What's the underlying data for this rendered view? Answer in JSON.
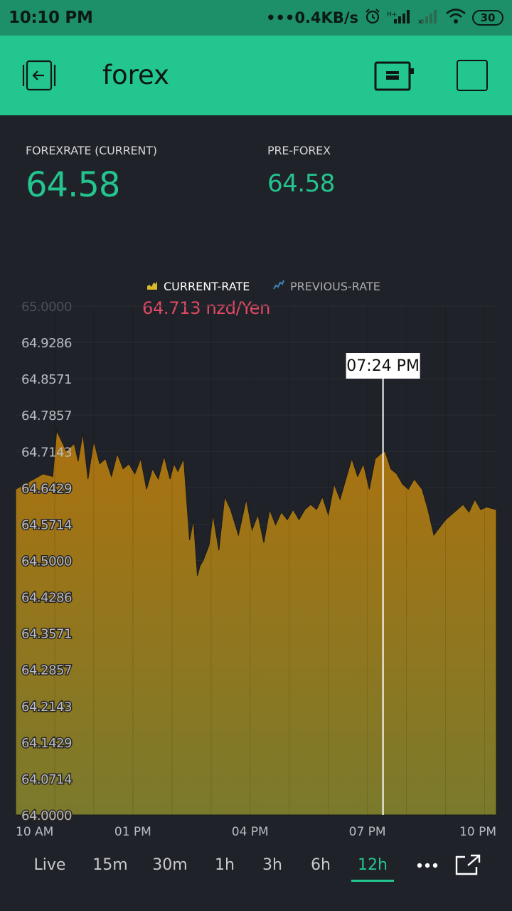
{
  "status_bar": {
    "time": "10:10 PM",
    "network_speed": "•••0.4KB/s",
    "battery": "30",
    "icons": [
      "alarm-icon",
      "signal-icon",
      "signal-no-service-icon",
      "wifi-icon",
      "battery-icon"
    ]
  },
  "header": {
    "title": "forex",
    "back_icon": "back-icon",
    "device_icon": "device-icon",
    "square_icon": "square-icon"
  },
  "displays": {
    "current": {
      "label": "FOREXRATE (CURRENT)",
      "value": "64.58"
    },
    "previous": {
      "label": "PRE-FOREX",
      "value": "64.58"
    }
  },
  "legend": {
    "current": "CURRENT-RATE",
    "previous": "PREVIOUS-RATE"
  },
  "readout": {
    "value": "64.713 nzd/Yen",
    "time": "07:24 PM"
  },
  "colors": {
    "accent": "#23c48e",
    "header_bg": "#22c68e",
    "statusbar_bg": "#1d8f69",
    "background": "#202229",
    "fill_top": "#ab720f",
    "fill_bottom": "#7a7a2c",
    "readout": "#e14a65"
  },
  "chart_data": {
    "type": "area",
    "y_ticks": [
      "65.0000",
      "64.9286",
      "64.8571",
      "64.7857",
      "64.7143",
      "64.6429",
      "64.5714",
      "64.5000",
      "64.4286",
      "64.3571",
      "64.2857",
      "64.2143",
      "64.1429",
      "64.0714",
      "64.0000"
    ],
    "ylim": [
      64.0,
      65.0
    ],
    "x_ticks": [
      "10 AM",
      "01 PM",
      "04 PM",
      "07 PM",
      "10 PM"
    ],
    "x_tick_hours": [
      10,
      13,
      16,
      19,
      22
    ],
    "xlim_hours": [
      10,
      22.3
    ],
    "cursor_hour": 19.4,
    "series": [
      {
        "name": "CURRENT-RATE",
        "hours": [
          10.0,
          10.35,
          10.7,
          10.95,
          11.05,
          11.3,
          11.5,
          11.6,
          11.72,
          11.85,
          12.0,
          12.15,
          12.3,
          12.45,
          12.6,
          12.75,
          12.9,
          13.05,
          13.2,
          13.35,
          13.5,
          13.65,
          13.8,
          13.95,
          14.05,
          14.15,
          14.3,
          14.45,
          14.55,
          14.65,
          14.72,
          14.8,
          14.95,
          15.05,
          15.2,
          15.35,
          15.5,
          15.7,
          15.9,
          16.05,
          16.2,
          16.35,
          16.5,
          16.65,
          16.8,
          16.95,
          17.1,
          17.25,
          17.4,
          17.55,
          17.7,
          17.85,
          18.0,
          18.15,
          18.3,
          18.45,
          18.6,
          18.75,
          18.9,
          19.05,
          19.2,
          19.35,
          19.45,
          19.6,
          19.75,
          19.9,
          20.05,
          20.2,
          20.4,
          20.55,
          20.7,
          20.85,
          21.0,
          21.15,
          21.3,
          21.45,
          21.6,
          21.75,
          21.9,
          22.05,
          22.3
        ],
        "values": [
          64.64,
          64.655,
          64.67,
          64.665,
          64.755,
          64.715,
          64.73,
          64.695,
          64.75,
          64.66,
          64.735,
          64.69,
          64.7,
          64.665,
          64.71,
          64.68,
          64.69,
          64.67,
          64.7,
          64.64,
          64.68,
          64.66,
          64.705,
          64.66,
          64.69,
          64.675,
          64.7,
          64.54,
          64.58,
          64.47,
          64.49,
          64.5,
          64.53,
          64.59,
          64.52,
          64.625,
          64.6,
          64.55,
          64.62,
          64.56,
          64.59,
          64.535,
          64.6,
          64.57,
          64.595,
          64.58,
          64.6,
          64.58,
          64.6,
          64.61,
          64.6,
          64.625,
          64.59,
          64.65,
          64.62,
          64.66,
          64.7,
          64.665,
          64.69,
          64.64,
          64.7,
          64.71,
          64.715,
          64.68,
          64.67,
          64.65,
          64.64,
          64.66,
          64.64,
          64.6,
          64.55,
          64.565,
          64.58,
          64.59,
          64.6,
          64.61,
          64.595,
          64.62,
          64.6,
          64.605,
          64.6
        ]
      }
    ]
  },
  "tabs": {
    "items": [
      {
        "label": "Live"
      },
      {
        "label": "15m"
      },
      {
        "label": "30m"
      },
      {
        "label": "1h"
      },
      {
        "label": "3h"
      },
      {
        "label": "6h"
      },
      {
        "label": "12h"
      }
    ],
    "active": "12h",
    "more_icon": "more-dots-icon",
    "expand_icon": "expand-icon"
  }
}
